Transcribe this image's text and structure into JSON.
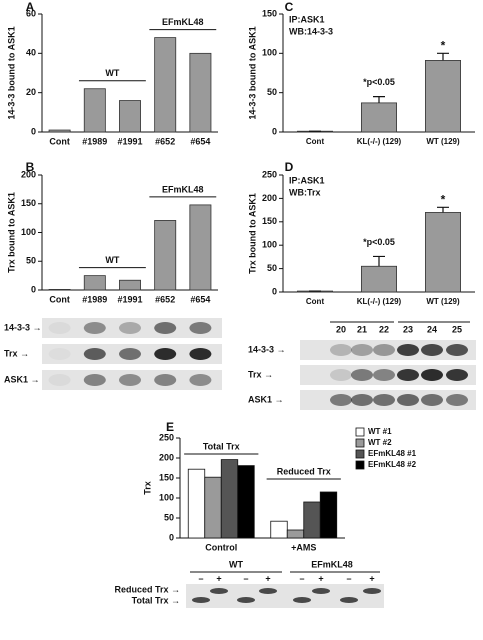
{
  "chart_data": [
    {
      "type": "bar",
      "panel": "A",
      "ylabel": "14-3-3 bound to ASK1",
      "categories": [
        "Cont",
        "#1989",
        "#1991",
        "#652",
        "#654"
      ],
      "values": [
        1,
        22,
        16,
        48,
        40
      ],
      "color": "#9a9a9a",
      "ylim": [
        0,
        60
      ],
      "yticks": [
        0,
        20,
        40,
        60
      ],
      "annotations": [
        "WT",
        "EFmKL48"
      ]
    },
    {
      "type": "bar",
      "panel": "B",
      "ylabel": "Trx bound to ASK1",
      "categories": [
        "Cont",
        "#1989",
        "#1991",
        "#652",
        "#654"
      ],
      "values": [
        1,
        25,
        17,
        121,
        148
      ],
      "color": "#9a9a9a",
      "ylim": [
        0,
        200
      ],
      "yticks": [
        0,
        50,
        100,
        150,
        200
      ],
      "annotations": [
        "WT",
        "EFmKL48"
      ]
    },
    {
      "type": "bar",
      "panel": "C",
      "ylabel": "14-3-3 bound to ASK1",
      "categories": [
        "Cont",
        "KL(-/-) (129)",
        "WT (129)"
      ],
      "values": [
        1,
        37,
        91
      ],
      "errors": [
        0,
        8,
        9
      ],
      "color": "#9a9a9a",
      "ylim": [
        0,
        150
      ],
      "yticks": [
        0,
        50,
        100,
        150
      ],
      "annotations": [
        "IP:ASK1",
        "WB:14-3-3",
        "*p<0.05",
        "*"
      ]
    },
    {
      "type": "bar",
      "panel": "D",
      "ylabel": "Trx bound to ASK1",
      "categories": [
        "Cont",
        "KL(-/-) (129)",
        "WT (129)"
      ],
      "values": [
        2,
        55,
        170
      ],
      "errors": [
        0,
        21,
        11
      ],
      "color": "#9a9a9a",
      "ylim": [
        0,
        250
      ],
      "yticks": [
        0,
        50,
        100,
        150,
        200,
        250
      ],
      "annotations": [
        "IP:ASK1",
        "WB:Trx",
        "*p<0.05",
        "*"
      ]
    },
    {
      "type": "grouped_bar",
      "panel": "E",
      "ylabel": "Trx",
      "categories": [
        "Control",
        "+AMS"
      ],
      "series": [
        {
          "name": "WT #1",
          "color": "#ffffff",
          "values": [
            172,
            42
          ]
        },
        {
          "name": "WT #2",
          "color": "#9a9a9a",
          "values": [
            152,
            20
          ]
        },
        {
          "name": "EFmKL48 #1",
          "color": "#555555",
          "values": [
            196,
            90
          ]
        },
        {
          "name": "EFmKL48 #2",
          "color": "#000000",
          "values": [
            181,
            115
          ]
        }
      ],
      "ylim": [
        0,
        250
      ],
      "yticks": [
        0,
        50,
        100,
        150,
        200,
        250
      ],
      "annotations": [
        "Total Trx",
        "Reduced Trx"
      ]
    }
  ],
  "blots": {
    "AB": {
      "rows": [
        "14-3-3 →",
        "Trx →",
        "ASK1 →"
      ]
    },
    "D": {
      "lanes": [
        "20",
        "21",
        "22",
        "23",
        "24",
        "25"
      ],
      "rows": [
        "14-3-3 →",
        "Trx →",
        "ASK1 →"
      ]
    },
    "E": {
      "groups": [
        "WT",
        "EFmKL48"
      ],
      "lanes": [
        "–",
        "+",
        "–",
        "+",
        "–",
        "+",
        "–",
        "+"
      ],
      "rows": [
        "Reduced Trx →",
        "Total Trx →"
      ]
    }
  }
}
